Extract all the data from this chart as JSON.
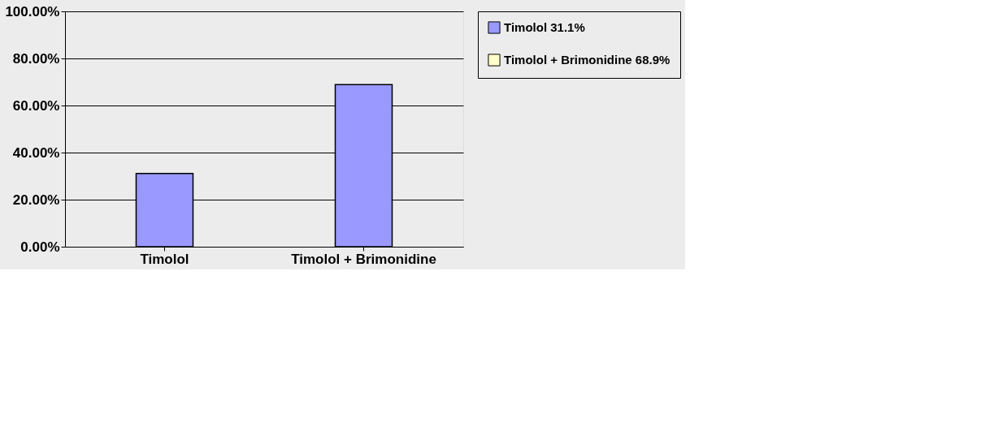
{
  "chart_data": {
    "type": "bar",
    "categories": [
      "Timolol",
      "Timolol + Brimonidine"
    ],
    "series": [
      {
        "name": "Timolol 31.1%",
        "color": "#9999ff",
        "values": [
          31.1,
          68.9
        ]
      },
      {
        "name": "Timolol + Brimonidine 68.9%",
        "color": "#ffffcc",
        "values": [
          null,
          null
        ]
      }
    ],
    "ylim": [
      0,
      100
    ],
    "yticks": [
      {
        "value": 0,
        "label": "0.00%"
      },
      {
        "value": 20,
        "label": "20.00%"
      },
      {
        "value": 40,
        "label": "40.00%"
      },
      {
        "value": 60,
        "label": "60.00%"
      },
      {
        "value": 80,
        "label": "80.00%"
      },
      {
        "value": 100,
        "label": "100.00%"
      }
    ],
    "grid": "y",
    "legend": "right"
  }
}
